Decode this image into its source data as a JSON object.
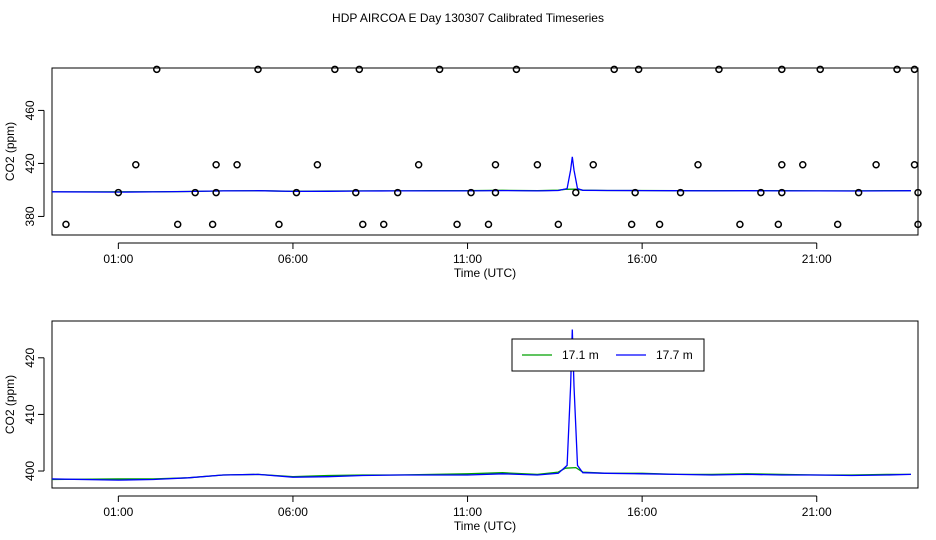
{
  "title": "HDP AIRCOA E  Day 130307  Calibrated Timeseries",
  "colors": {
    "background": "#ffffff",
    "axes": "#000000",
    "series_17_1": "#00a000",
    "series_17_7": "#0000ff",
    "points": "#000000"
  },
  "chart_data": [
    {
      "type": "line",
      "xlabel": "Time (UTC)",
      "ylabel": "CO2 (ppm)",
      "xlim": [
        -0.9,
        23.9
      ],
      "ylim": [
        366,
        492
      ],
      "x_ticks": [
        {
          "value": 1,
          "label": "01:00"
        },
        {
          "value": 6,
          "label": "06:00"
        },
        {
          "value": 11,
          "label": "11:00"
        },
        {
          "value": 16,
          "label": "16:00"
        },
        {
          "value": 21,
          "label": "21:00"
        }
      ],
      "y_ticks": [
        {
          "value": 380,
          "label": "380"
        },
        {
          "value": 420,
          "label": "420"
        },
        {
          "value": 460,
          "label": "460"
        }
      ],
      "series": [
        {
          "color": "green",
          "x": [
            -1.0,
            1.0,
            2.0,
            3.0,
            4.0,
            5.0,
            6.0,
            7.0,
            8.0,
            9.0,
            10.0,
            11.0,
            12.0,
            13.0,
            13.6,
            13.8,
            14.1,
            14.3,
            15.0,
            16.0,
            17.0,
            18.0,
            19.0,
            20.0,
            21.0,
            22.0,
            23.0,
            23.7
          ],
          "y": [
            398.5,
            398.6,
            398.6,
            398.8,
            399.3,
            399.4,
            399.0,
            399.2,
            399.3,
            399.3,
            399.4,
            399.5,
            399.7,
            399.4,
            399.8,
            400.5,
            400.6,
            399.8,
            399.6,
            399.6,
            399.4,
            399.4,
            399.5,
            399.4,
            399.3,
            399.3,
            399.4,
            399.4
          ]
        },
        {
          "color": "blue",
          "x": [
            -1.0,
            1.0,
            2.0,
            3.0,
            4.0,
            5.0,
            6.0,
            7.0,
            8.0,
            9.0,
            10.0,
            11.0,
            12.0,
            13.0,
            13.6,
            13.85,
            13.95,
            14.0,
            14.05,
            14.15,
            14.3,
            15.0,
            16.0,
            17.0,
            18.0,
            19.0,
            20.0,
            21.0,
            22.0,
            23.0,
            23.7
          ],
          "y": [
            398.6,
            398.4,
            398.5,
            398.8,
            399.3,
            399.4,
            398.9,
            399.0,
            399.2,
            399.3,
            399.3,
            399.3,
            399.5,
            399.3,
            399.6,
            401.0,
            415.0,
            425.0,
            415.0,
            401.0,
            399.7,
            399.6,
            399.5,
            399.4,
            399.3,
            399.4,
            399.3,
            399.3,
            399.2,
            399.3,
            399.4
          ]
        }
      ],
      "calibration_points": {
        "x": [
          -0.5,
          1.0,
          1.5,
          2.1,
          2.7,
          3.2,
          3.7,
          3.8,
          3.8,
          4.4,
          5.0,
          5.6,
          6.1,
          6.7,
          7.2,
          7.8,
          7.9,
          8.0,
          8.6,
          9.0,
          9.6,
          10.2,
          10.7,
          11.1,
          11.6,
          11.8,
          11.8,
          12.4,
          13.0,
          13.6,
          14.1,
          14.6,
          15.2,
          15.7,
          15.8,
          15.9,
          16.5,
          17.1,
          17.6,
          18.2,
          18.8,
          19.4,
          19.9,
          20.0,
          20.0,
          20.0,
          20.6,
          21.1,
          21.6,
          22.2,
          22.7,
          23.3,
          23.8,
          23.8,
          23.9,
          23.9
        ],
        "y": [
          374,
          398,
          419,
          491,
          374,
          398,
          374,
          398,
          419,
          419,
          491,
          374,
          398,
          419,
          491,
          398,
          491,
          374,
          374,
          398,
          419,
          491,
          374,
          398,
          374,
          398,
          419,
          491,
          419,
          374,
          398,
          419,
          491,
          374,
          398,
          491,
          374,
          398,
          419,
          491,
          374,
          398,
          374,
          398,
          419,
          491,
          419,
          491,
          374,
          398,
          419,
          491,
          419,
          491,
          374,
          398
        ]
      }
    },
    {
      "type": "line",
      "xlabel": "Time (UTC)",
      "ylabel": "CO2 (ppm)",
      "xlim": [
        -0.9,
        23.9
      ],
      "ylim": [
        397,
        426.5
      ],
      "x_ticks": [
        {
          "value": 1,
          "label": "01:00"
        },
        {
          "value": 6,
          "label": "06:00"
        },
        {
          "value": 11,
          "label": "11:00"
        },
        {
          "value": 16,
          "label": "16:00"
        },
        {
          "value": 21,
          "label": "21:00"
        }
      ],
      "y_ticks": [
        {
          "value": 400,
          "label": "400"
        },
        {
          "value": 410,
          "label": "410"
        },
        {
          "value": 420,
          "label": "420"
        }
      ],
      "legend": {
        "position": "top",
        "entries": [
          {
            "name": "17.1 m",
            "color": "green"
          },
          {
            "name": "17.7 m",
            "color": "blue"
          }
        ]
      },
      "series": [
        {
          "name": "17.1 m",
          "color": "green",
          "x": [
            -1.0,
            1.0,
            2.0,
            3.0,
            4.0,
            5.0,
            6.0,
            7.0,
            8.0,
            9.0,
            10.0,
            11.0,
            12.0,
            13.0,
            13.6,
            13.8,
            14.1,
            14.3,
            15.0,
            16.0,
            17.0,
            18.0,
            19.0,
            20.0,
            21.0,
            22.0,
            23.0,
            23.7
          ],
          "y": [
            398.5,
            398.6,
            398.6,
            398.8,
            399.3,
            399.4,
            399.0,
            399.2,
            399.3,
            399.3,
            399.4,
            399.5,
            399.7,
            399.4,
            399.8,
            400.5,
            400.6,
            399.8,
            399.6,
            399.6,
            399.4,
            399.4,
            399.5,
            399.4,
            399.3,
            399.3,
            399.4,
            399.4
          ]
        },
        {
          "name": "17.7 m",
          "color": "blue",
          "x": [
            -1.0,
            1.0,
            2.0,
            3.0,
            4.0,
            5.0,
            6.0,
            7.0,
            8.0,
            9.0,
            10.0,
            11.0,
            12.0,
            13.0,
            13.6,
            13.85,
            13.95,
            14.0,
            14.05,
            14.15,
            14.3,
            15.0,
            16.0,
            17.0,
            18.0,
            19.0,
            20.0,
            21.0,
            22.0,
            23.0,
            23.7
          ],
          "y": [
            398.6,
            398.4,
            398.5,
            398.8,
            399.3,
            399.4,
            398.9,
            399.0,
            399.2,
            399.3,
            399.3,
            399.3,
            399.5,
            399.3,
            399.6,
            401.0,
            415.0,
            425.0,
            415.0,
            401.0,
            399.7,
            399.6,
            399.5,
            399.4,
            399.3,
            399.4,
            399.3,
            399.3,
            399.2,
            399.3,
            399.4
          ]
        }
      ]
    }
  ]
}
